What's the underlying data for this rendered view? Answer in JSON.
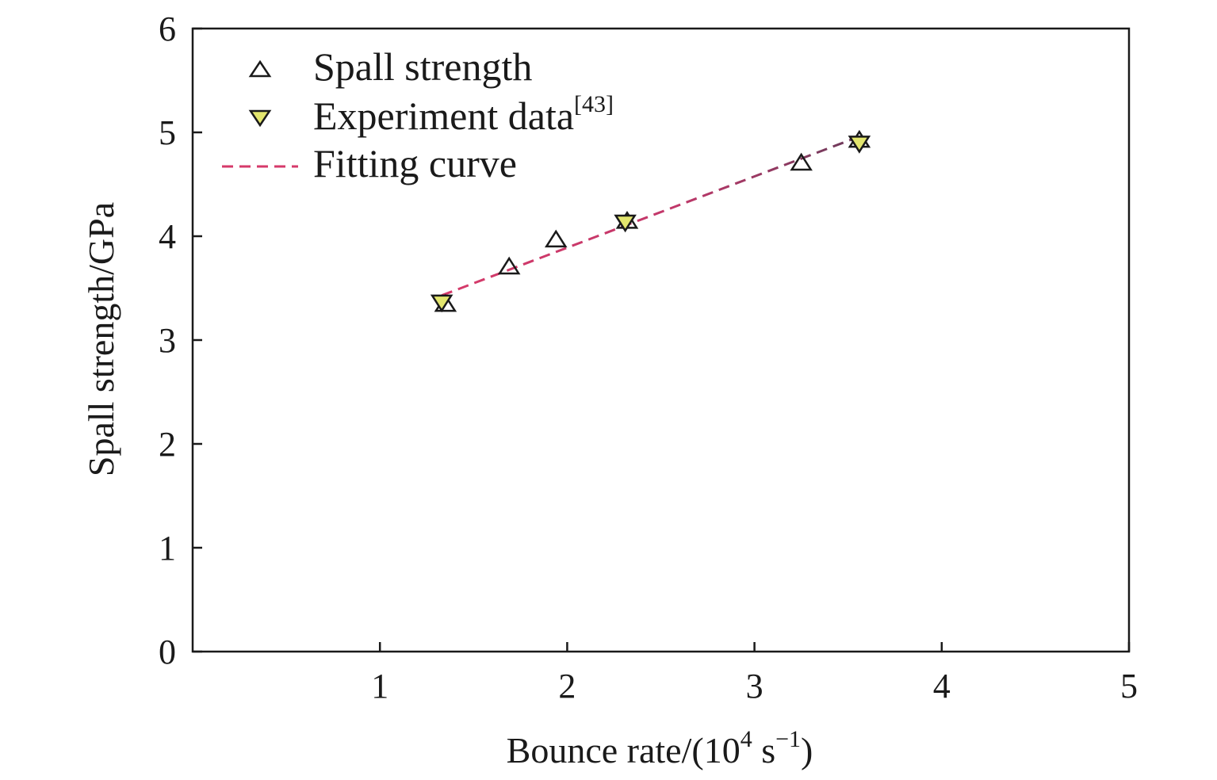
{
  "chart_data": {
    "type": "scatter",
    "xlabel": {
      "text": "Bounce rate/(10",
      "sup1": "4",
      "mid": " s",
      "sup2": "−1",
      "end": ")"
    },
    "ylabel": "Spall strength/GPa",
    "xlim": [
      0,
      5
    ],
    "ylim": [
      0,
      6
    ],
    "xticks": [
      1,
      2,
      3,
      4,
      5
    ],
    "yticks": [
      0,
      1,
      2,
      3,
      4,
      5,
      6
    ],
    "grid": false,
    "legend_position": "top-left",
    "series": [
      {
        "name": "Spall strength",
        "marker": "triangle-up",
        "color": "#1a1a1a",
        "fill": "none",
        "points": [
          {
            "x": 1.35,
            "y": 3.35
          },
          {
            "x": 1.69,
            "y": 3.71
          },
          {
            "x": 1.94,
            "y": 3.97
          },
          {
            "x": 2.32,
            "y": 4.15
          },
          {
            "x": 3.25,
            "y": 4.71
          },
          {
            "x": 3.56,
            "y": 4.93
          }
        ]
      },
      {
        "name": "Experiment data",
        "name_sup": "[43]",
        "marker": "triangle-down",
        "color": "#1a1a1a",
        "fill": "#e3e66e",
        "points": [
          {
            "x": 1.33,
            "y": 3.36
          },
          {
            "x": 2.31,
            "y": 4.13
          },
          {
            "x": 3.56,
            "y": 4.89
          }
        ]
      },
      {
        "name": "Fitting curve",
        "line_style": "dashed",
        "color": "#d63a6a",
        "points": [
          {
            "x": 1.33,
            "y": 3.43
          },
          {
            "x": 3.56,
            "y": 4.96
          }
        ]
      }
    ]
  }
}
